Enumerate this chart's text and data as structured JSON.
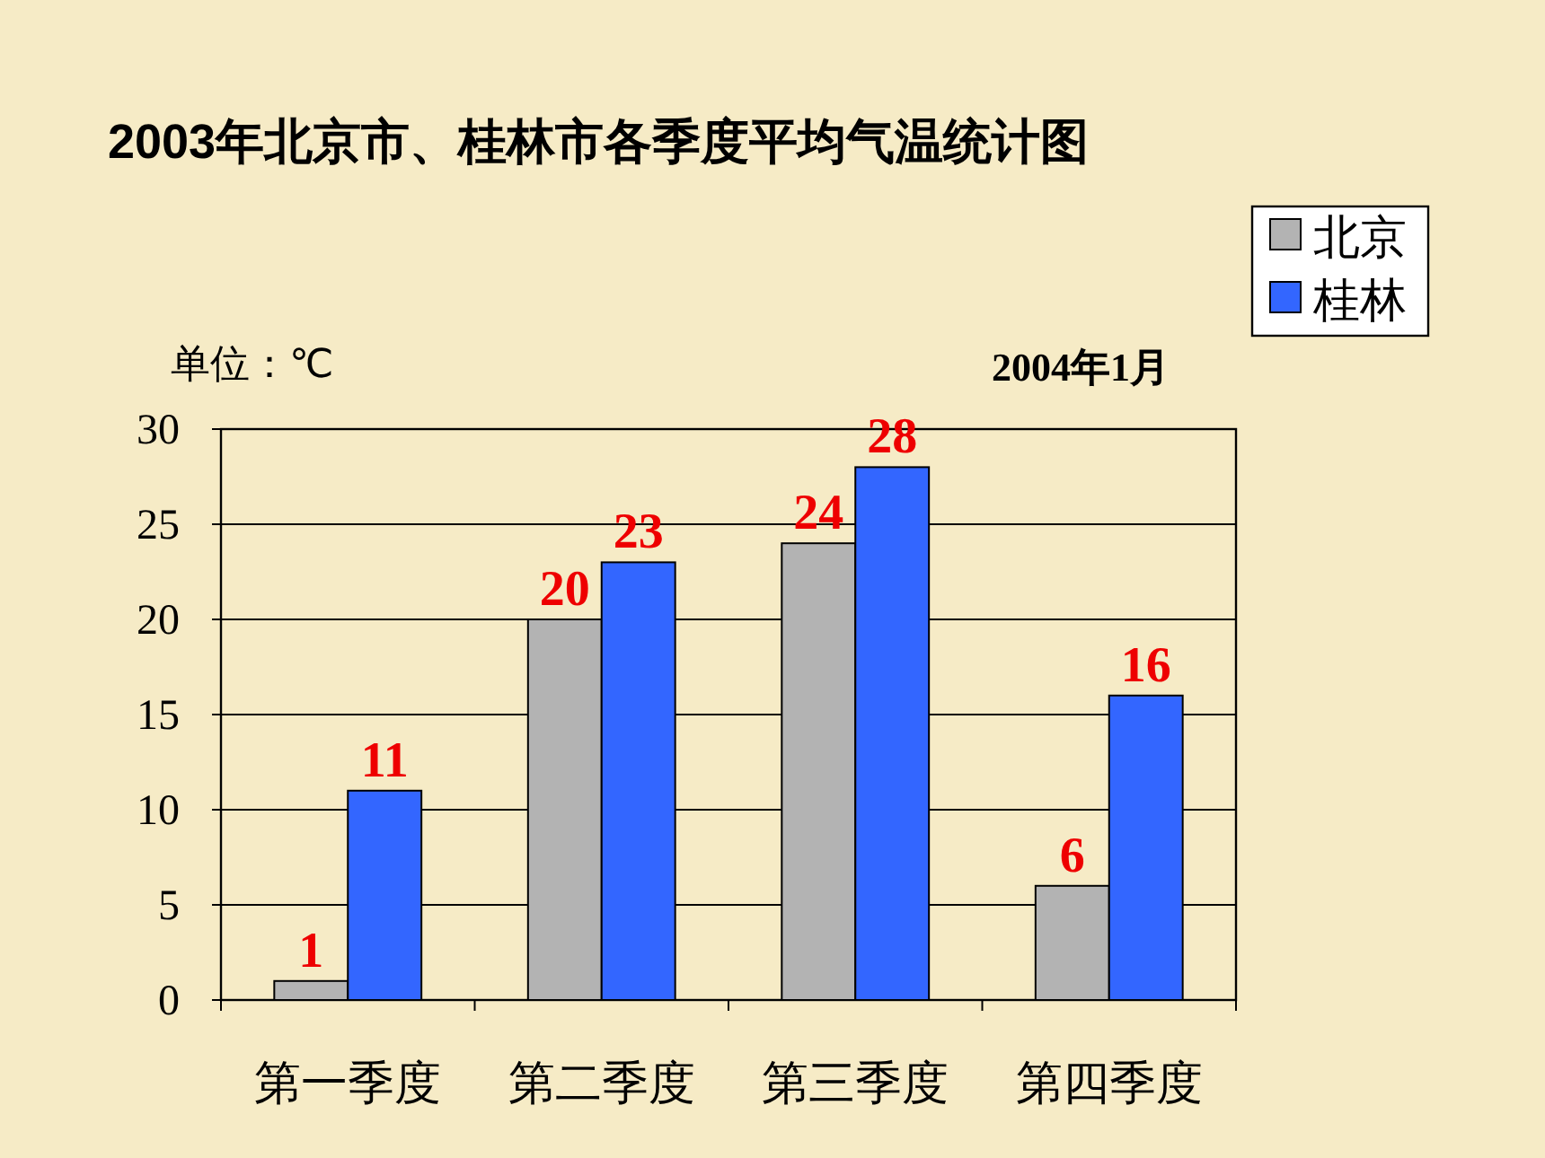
{
  "chart_data": {
    "type": "bar",
    "title": "2003年北京市、桂林市各季度平均气温统计图",
    "categories": [
      "第一季度",
      "第二季度",
      "第三季度",
      "第四季度"
    ],
    "series": [
      {
        "name": "北京",
        "color": "#b3b3b3",
        "values": [
          1,
          20,
          24,
          6
        ]
      },
      {
        "name": "桂林",
        "color": "#3366ff",
        "values": [
          11,
          23,
          28,
          16
        ]
      }
    ],
    "ylim": [
      0,
      30
    ],
    "yticks": [
      0,
      5,
      10,
      15,
      20,
      25,
      30
    ],
    "grid": "y",
    "legend": "top right",
    "data_labels": true,
    "annotations": [
      "单位：℃",
      "2004年1月"
    ]
  }
}
